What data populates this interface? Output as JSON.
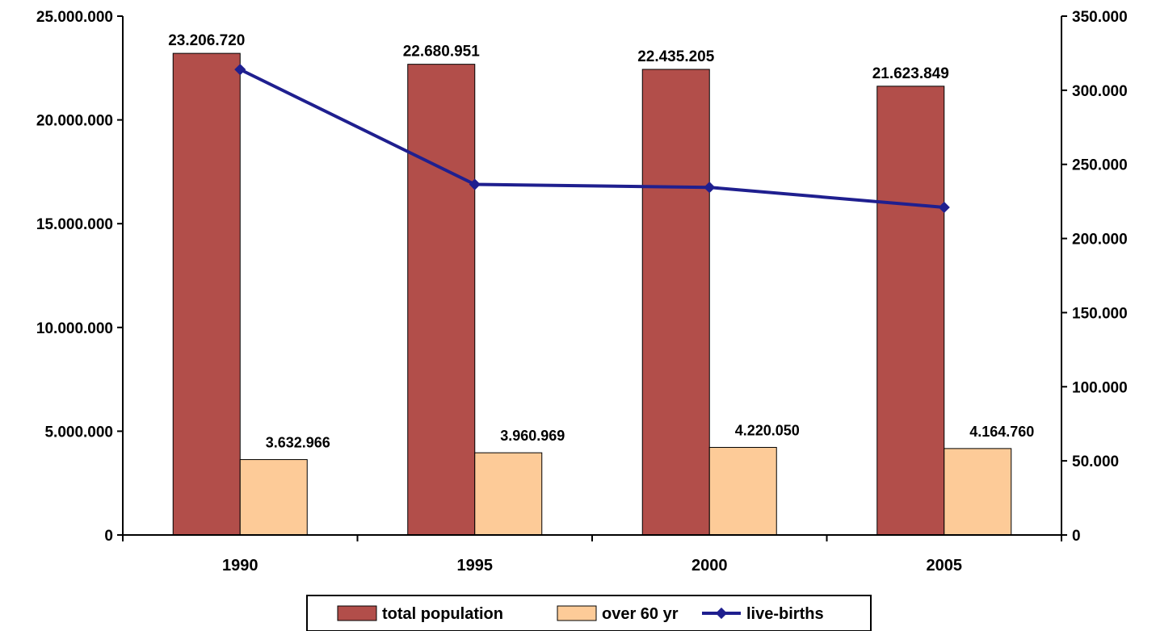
{
  "chart_data": {
    "type": "bar",
    "categories": [
      "1990",
      "1995",
      "2000",
      "2005"
    ],
    "series": [
      {
        "name": "total population",
        "kind": "bar",
        "axis": "left",
        "color": "#b24e4a",
        "values": [
          23206720,
          22680951,
          22435205,
          21623849
        ],
        "labels": [
          "23.206.720",
          "22.680.951",
          "22.435.205",
          "21.623.849"
        ]
      },
      {
        "name": "over 60 yr",
        "kind": "bar",
        "axis": "left",
        "color": "#fdcb98",
        "values": [
          3632966,
          3960969,
          4220050,
          4164760
        ],
        "labels": [
          "3.632.966",
          "3.960.969",
          "4.220.050",
          "4.164.760"
        ]
      },
      {
        "name": "live-births",
        "kind": "line",
        "axis": "right",
        "color": "#1f1f8f",
        "values": [
          314000,
          236500,
          234500,
          221000
        ]
      }
    ],
    "y_left": {
      "ylim": [
        0,
        25000000
      ],
      "ticks": [
        0,
        5000000,
        10000000,
        15000000,
        20000000,
        25000000
      ],
      "tick_labels": [
        "0",
        "5.000.000",
        "10.000.000",
        "15.000.000",
        "20.000.000",
        "25.000.000"
      ]
    },
    "y_right": {
      "ylim": [
        0,
        350000
      ],
      "ticks": [
        0,
        50000,
        100000,
        150000,
        200000,
        250000,
        300000,
        350000
      ],
      "tick_labels": [
        "0",
        "50.000",
        "100.000",
        "150.000",
        "200.000",
        "250.000",
        "300.000",
        "350.000"
      ]
    },
    "grid": false,
    "legend_position": "bottom-center"
  }
}
